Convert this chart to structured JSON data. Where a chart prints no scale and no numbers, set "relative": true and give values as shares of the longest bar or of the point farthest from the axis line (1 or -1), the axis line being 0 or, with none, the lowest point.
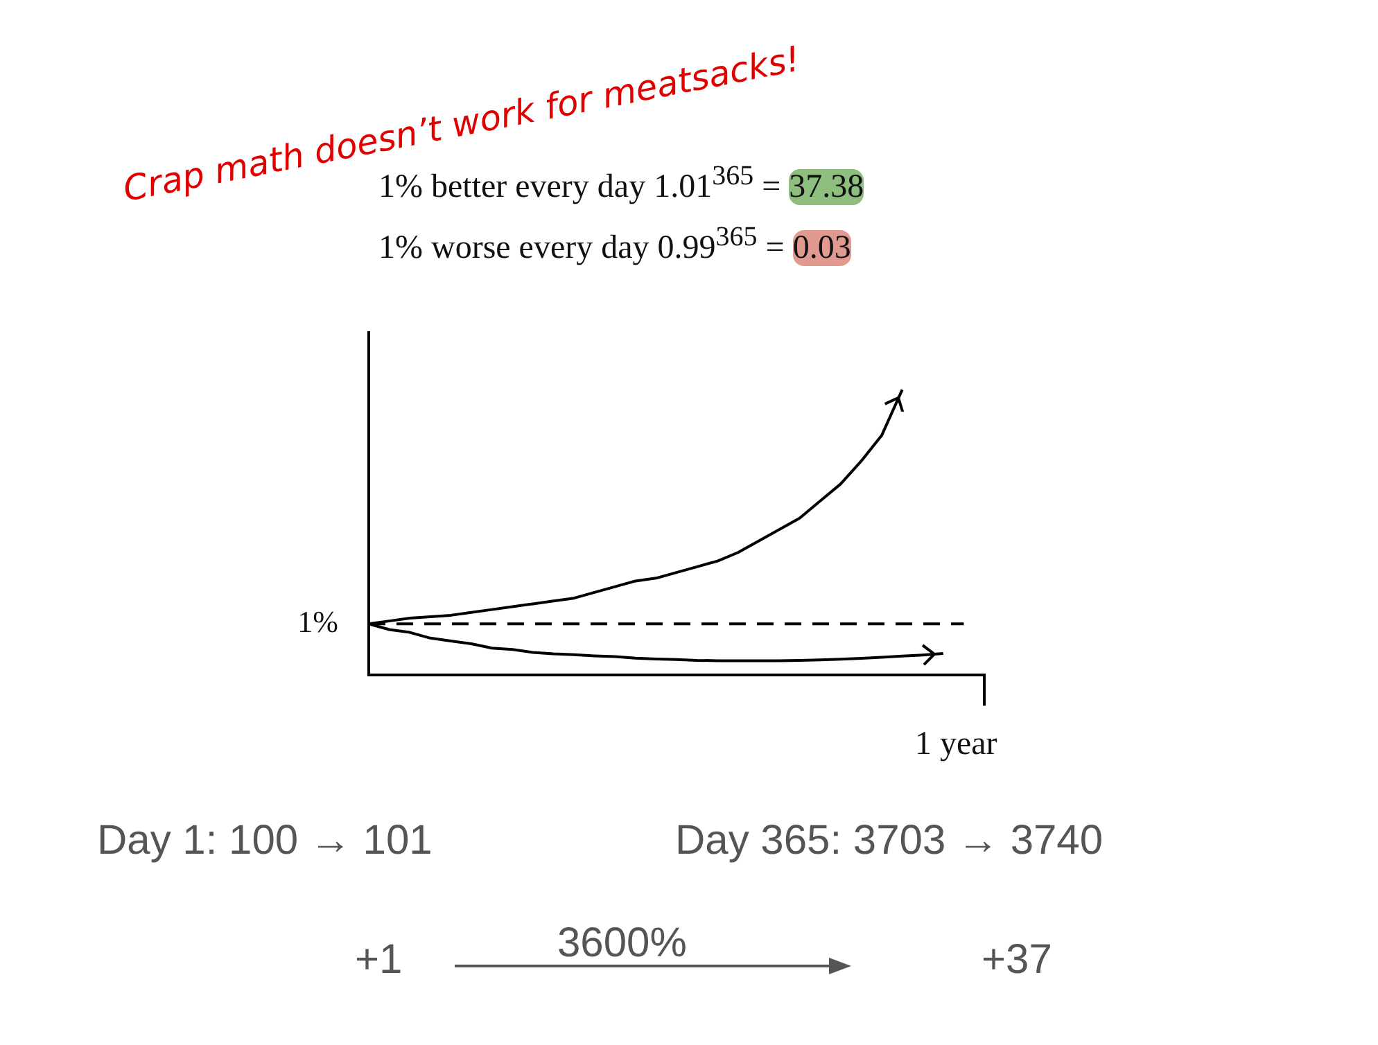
{
  "chart_data": {
    "type": "line",
    "relative": true,
    "grid": false,
    "legend": false,
    "marker": "none",
    "categories": [
      null,
      null,
      null,
      null,
      null,
      null,
      null,
      null,
      null,
      null,
      null,
      null,
      null,
      null,
      null,
      null,
      null,
      null,
      null,
      null,
      null,
      null,
      null,
      null,
      null,
      null,
      null,
      null,
      null,
      null,
      null
    ],
    "series": [
      {
        "color": "#000000",
        "values": [
          0.18,
          0.19,
          0.2,
          0.205,
          0.21,
          0.22,
          0.23,
          0.24,
          0.25,
          0.26,
          0.27,
          0.29,
          0.31,
          0.33,
          0.34,
          0.36,
          0.38,
          0.4,
          0.43,
          0.47,
          0.51,
          0.55,
          0.61,
          0.67,
          0.75,
          0.84,
          1,
          null,
          null,
          null,
          null
        ]
      },
      {
        "color": "#000000",
        "values": [
          0.18,
          0.16,
          0.15,
          0.13,
          0.12,
          0.11,
          0.095,
          0.09,
          0.08,
          0.075,
          0.072,
          0.068,
          0.065,
          0.06,
          0.057,
          0.055,
          0.052,
          0.051,
          0.051,
          0.051,
          0.051,
          0.052,
          0.054,
          0.056,
          0.059,
          0.063,
          0.067,
          0.071,
          0.076,
          null,
          null
        ]
      },
      {
        "name": "1%",
        "color": "#000000",
        "line_style": "dashed",
        "values": [
          0.18,
          0.18,
          0.18,
          0.18,
          0.18,
          0.18,
          0.18,
          0.18,
          0.18,
          0.18,
          0.18,
          0.18,
          0.18,
          0.18,
          0.18,
          0.18,
          0.18,
          0.18,
          0.18,
          0.18,
          0.18,
          0.18,
          0.18,
          0.18,
          0.18,
          0.18,
          0.18,
          0.18,
          0.18,
          0.18,
          null
        ]
      }
    ],
    "annotations": [
      "Crap math doesn’t work for meatsacks!",
      "1% better every day  1.01$^{365}$ = 37.38",
      "1% worse every day  0.99$^{365}$ = 0.03",
      "Day 1: 100 → 101",
      "Day 365: 3703 → 3740",
      "+1",
      "3600%",
      "+37",
      "1 year"
    ]
  }
}
